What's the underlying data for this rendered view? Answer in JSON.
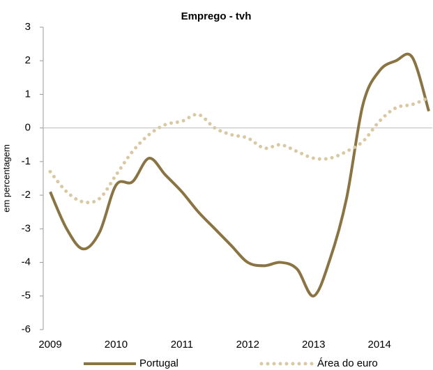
{
  "chart_data": {
    "type": "line",
    "title": "Emprego - tvh",
    "y_label": "em percentagem",
    "categories": [
      "2009",
      null,
      null,
      null,
      "2010",
      null,
      null,
      null,
      "2011",
      null,
      null,
      null,
      "2012",
      null,
      null,
      null,
      "2013",
      null,
      null,
      null,
      "2014",
      null,
      null,
      null
    ],
    "series": [
      {
        "name": "Portugal",
        "color": "#8b7443",
        "style": "solid",
        "values": [
          -1.9,
          -3.0,
          -3.6,
          -3.1,
          -1.7,
          -1.6,
          -0.9,
          -1.4,
          -1.9,
          -2.5,
          -3.0,
          -3.5,
          -4.0,
          -4.1,
          -4.0,
          -4.2,
          -5.0,
          -3.9,
          -2.1,
          0.7,
          1.7,
          2.0,
          2.1,
          0.5
        ]
      },
      {
        "name": "Área do euro",
        "color": "#d9c9a3",
        "style": "dotted",
        "values": [
          -1.3,
          -1.9,
          -2.2,
          -2.1,
          -1.4,
          -0.7,
          -0.2,
          0.1,
          0.2,
          0.4,
          0.0,
          -0.2,
          -0.3,
          -0.6,
          -0.5,
          -0.7,
          -0.9,
          -0.9,
          -0.7,
          -0.4,
          0.2,
          0.6,
          0.7,
          0.9
        ]
      }
    ],
    "ylim": [
      -6,
      3
    ],
    "yticks": [
      -6,
      -5,
      -4,
      -3,
      -2,
      -1,
      0,
      1,
      2,
      3
    ],
    "legend": "bottom"
  }
}
